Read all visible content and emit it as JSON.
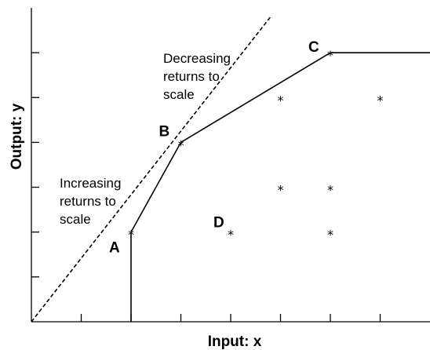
{
  "chart_data": {
    "type": "line",
    "title": "",
    "xlabel": "Input: x",
    "ylabel": "Output: y",
    "xlim": [
      0,
      8
    ],
    "ylim": [
      0,
      7
    ],
    "x_ticks": [
      1,
      2,
      3,
      4,
      5,
      6,
      7
    ],
    "y_ticks": [
      1,
      2,
      3,
      4,
      5,
      6
    ],
    "grid": false,
    "legend": "none",
    "frontier": {
      "points": [
        [
          2,
          0
        ],
        [
          2,
          2
        ],
        [
          3,
          4
        ],
        [
          6,
          6
        ],
        [
          8,
          6
        ]
      ]
    },
    "crs_ray": {
      "style": "dashed",
      "points": [
        [
          0,
          0
        ],
        [
          4.8,
          6.8
        ]
      ]
    },
    "observations": [
      {
        "x": 2,
        "y": 2,
        "label": "A"
      },
      {
        "x": 3,
        "y": 4,
        "label": "B"
      },
      {
        "x": 6,
        "y": 6,
        "label": "C"
      },
      {
        "x": 4,
        "y": 2,
        "label": "D"
      },
      {
        "x": 5,
        "y": 5,
        "label": ""
      },
      {
        "x": 7,
        "y": 5,
        "label": ""
      },
      {
        "x": 5,
        "y": 3,
        "label": ""
      },
      {
        "x": 6,
        "y": 3,
        "label": ""
      },
      {
        "x": 6,
        "y": 2,
        "label": ""
      }
    ],
    "annotations": {
      "increasing": [
        "Increasing",
        "returns to",
        "scale"
      ],
      "decreasing": [
        "Decreasing",
        "returns to",
        "scale"
      ]
    },
    "marker": "*"
  }
}
